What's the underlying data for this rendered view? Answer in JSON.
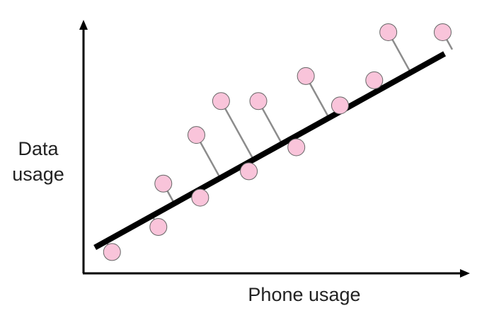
{
  "colors": {
    "background": "#ffffff",
    "axis": "#000000",
    "fit_line": "#000000",
    "residual": "#8c8c8c",
    "point_fill": "#f9c4da",
    "point_stroke": "#666666",
    "text": "#222222"
  },
  "chart_data": {
    "type": "scatter",
    "title": "",
    "xlabel": "Phone usage",
    "ylabel": "Data usage",
    "xlim": [
      0,
      10
    ],
    "ylim": [
      0,
      10
    ],
    "grid": false,
    "legend": "none",
    "show_ticks": false,
    "fit_line": {
      "slope": 0.84,
      "intercept": 0.78,
      "x_range": [
        0.3,
        9.5
      ]
    },
    "points": [
      {
        "x": 0.75,
        "y": 0.85
      },
      {
        "x": 1.97,
        "y": 1.85
      },
      {
        "x": 2.1,
        "y": 3.58
      },
      {
        "x": 3.07,
        "y": 3.02
      },
      {
        "x": 2.97,
        "y": 5.52
      },
      {
        "x": 3.62,
        "y": 6.87
      },
      {
        "x": 4.35,
        "y": 4.07
      },
      {
        "x": 4.6,
        "y": 6.87
      },
      {
        "x": 5.6,
        "y": 5.03
      },
      {
        "x": 5.85,
        "y": 7.87
      },
      {
        "x": 6.75,
        "y": 6.7
      },
      {
        "x": 7.65,
        "y": 7.7
      },
      {
        "x": 8.02,
        "y": 9.62
      },
      {
        "x": 9.45,
        "y": 9.62
      }
    ]
  }
}
